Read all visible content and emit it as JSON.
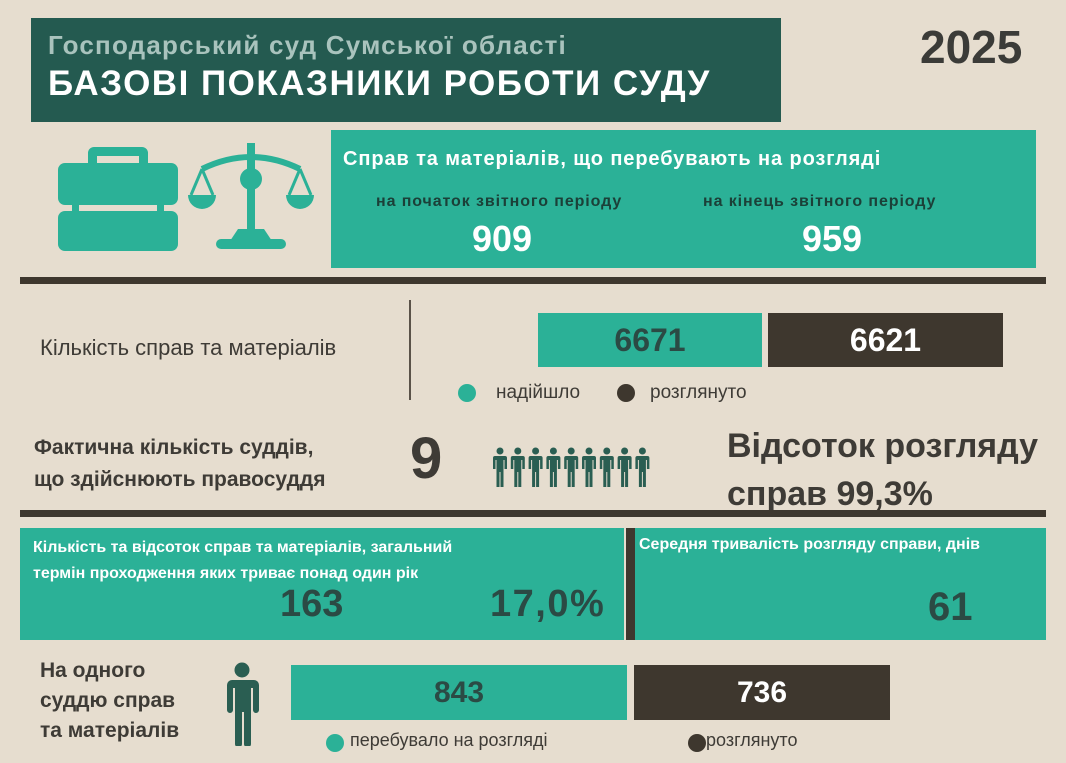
{
  "header": {
    "subtitle": "Господарський суд Сумської області",
    "title": "БАЗОВІ ПОКАЗНИКИ РОБОТИ СУДУ",
    "year": "2025"
  },
  "pending": {
    "title": "Справ та матеріалів, що перебувають на розгляді",
    "start_label": "на початок звітного періоду",
    "start_value": "909",
    "end_label": "на кінець звітного періоду",
    "end_value": "959"
  },
  "cases": {
    "label": "Кількість справ та матеріалів",
    "received_value": "6671",
    "reviewed_value": "6621",
    "legend_received": "надійшло",
    "legend_reviewed": "розглянуто"
  },
  "judges": {
    "label_line1": "Фактична кількість суддів,",
    "label_line2": "що здійснюють правосуддя",
    "count": "9",
    "icon_count": 9
  },
  "rate": {
    "line1": "Відсоток розгляду",
    "line2": "справ 99,3%"
  },
  "long_cases": {
    "label_line1": "Кількість та відсоток справ та матеріалів, загальний",
    "label_line2": "термін проходження яких триває понад один рік",
    "count": "163",
    "percent": "17,0%"
  },
  "duration": {
    "label": "Середня тривалість розгляду справи, днів",
    "value": "61"
  },
  "per_judge": {
    "label_line1": "На одного",
    "label_line2": "суддю справ",
    "label_line3": "та матеріалів",
    "pending_value": "843",
    "reviewed_value": "736",
    "legend_pending": "перебувало на розгляді",
    "legend_reviewed": "розглянуто"
  },
  "colors": {
    "background": "#e6ddcf",
    "teal": "#2bb197",
    "dark_green": "#245a50",
    "dark_brown": "#3e372e",
    "figure_green": "#2a5e52"
  },
  "icons": [
    "briefcase-icon",
    "scales-icon",
    "person-icon"
  ]
}
